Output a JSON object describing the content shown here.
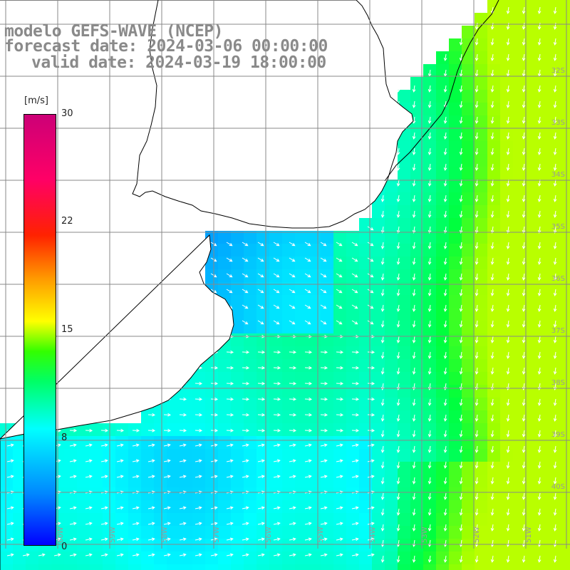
{
  "title": {
    "line1": "modelo GEFS-WAVE (NCEP)",
    "line2": "forecast date: 2024-03-06 00:00:00",
    "line3": "valid date: 2024-03-19 18:00:00"
  },
  "legend": {
    "unit": "[m/s]",
    "ticks": [
      "30",
      "22",
      "15",
      "8",
      "0"
    ],
    "tick_values": [
      30,
      22,
      15,
      8,
      0
    ],
    "colors": [
      "#0000ff",
      "#0088ff",
      "#00ffff",
      "#00ff66",
      "#33ff00",
      "#ffff00",
      "#ff9900",
      "#ff2200",
      "#ff0066",
      "#cc0077"
    ]
  },
  "map": {
    "variable": "wind speed",
    "units": "m/s",
    "lat_labels": [
      "32S",
      "33S",
      "34S",
      "35S",
      "36S",
      "37S",
      "38S",
      "39S",
      "40S"
    ],
    "lon_labels": [
      "60W",
      "59W",
      "58W",
      "57W",
      "56W",
      "55W",
      "54W",
      "53W",
      "52W",
      "51W"
    ],
    "colors": {
      "land": "#ffffff",
      "coast": "#000000",
      "grid": "#888888",
      "vector": "#ffffff"
    }
  }
}
